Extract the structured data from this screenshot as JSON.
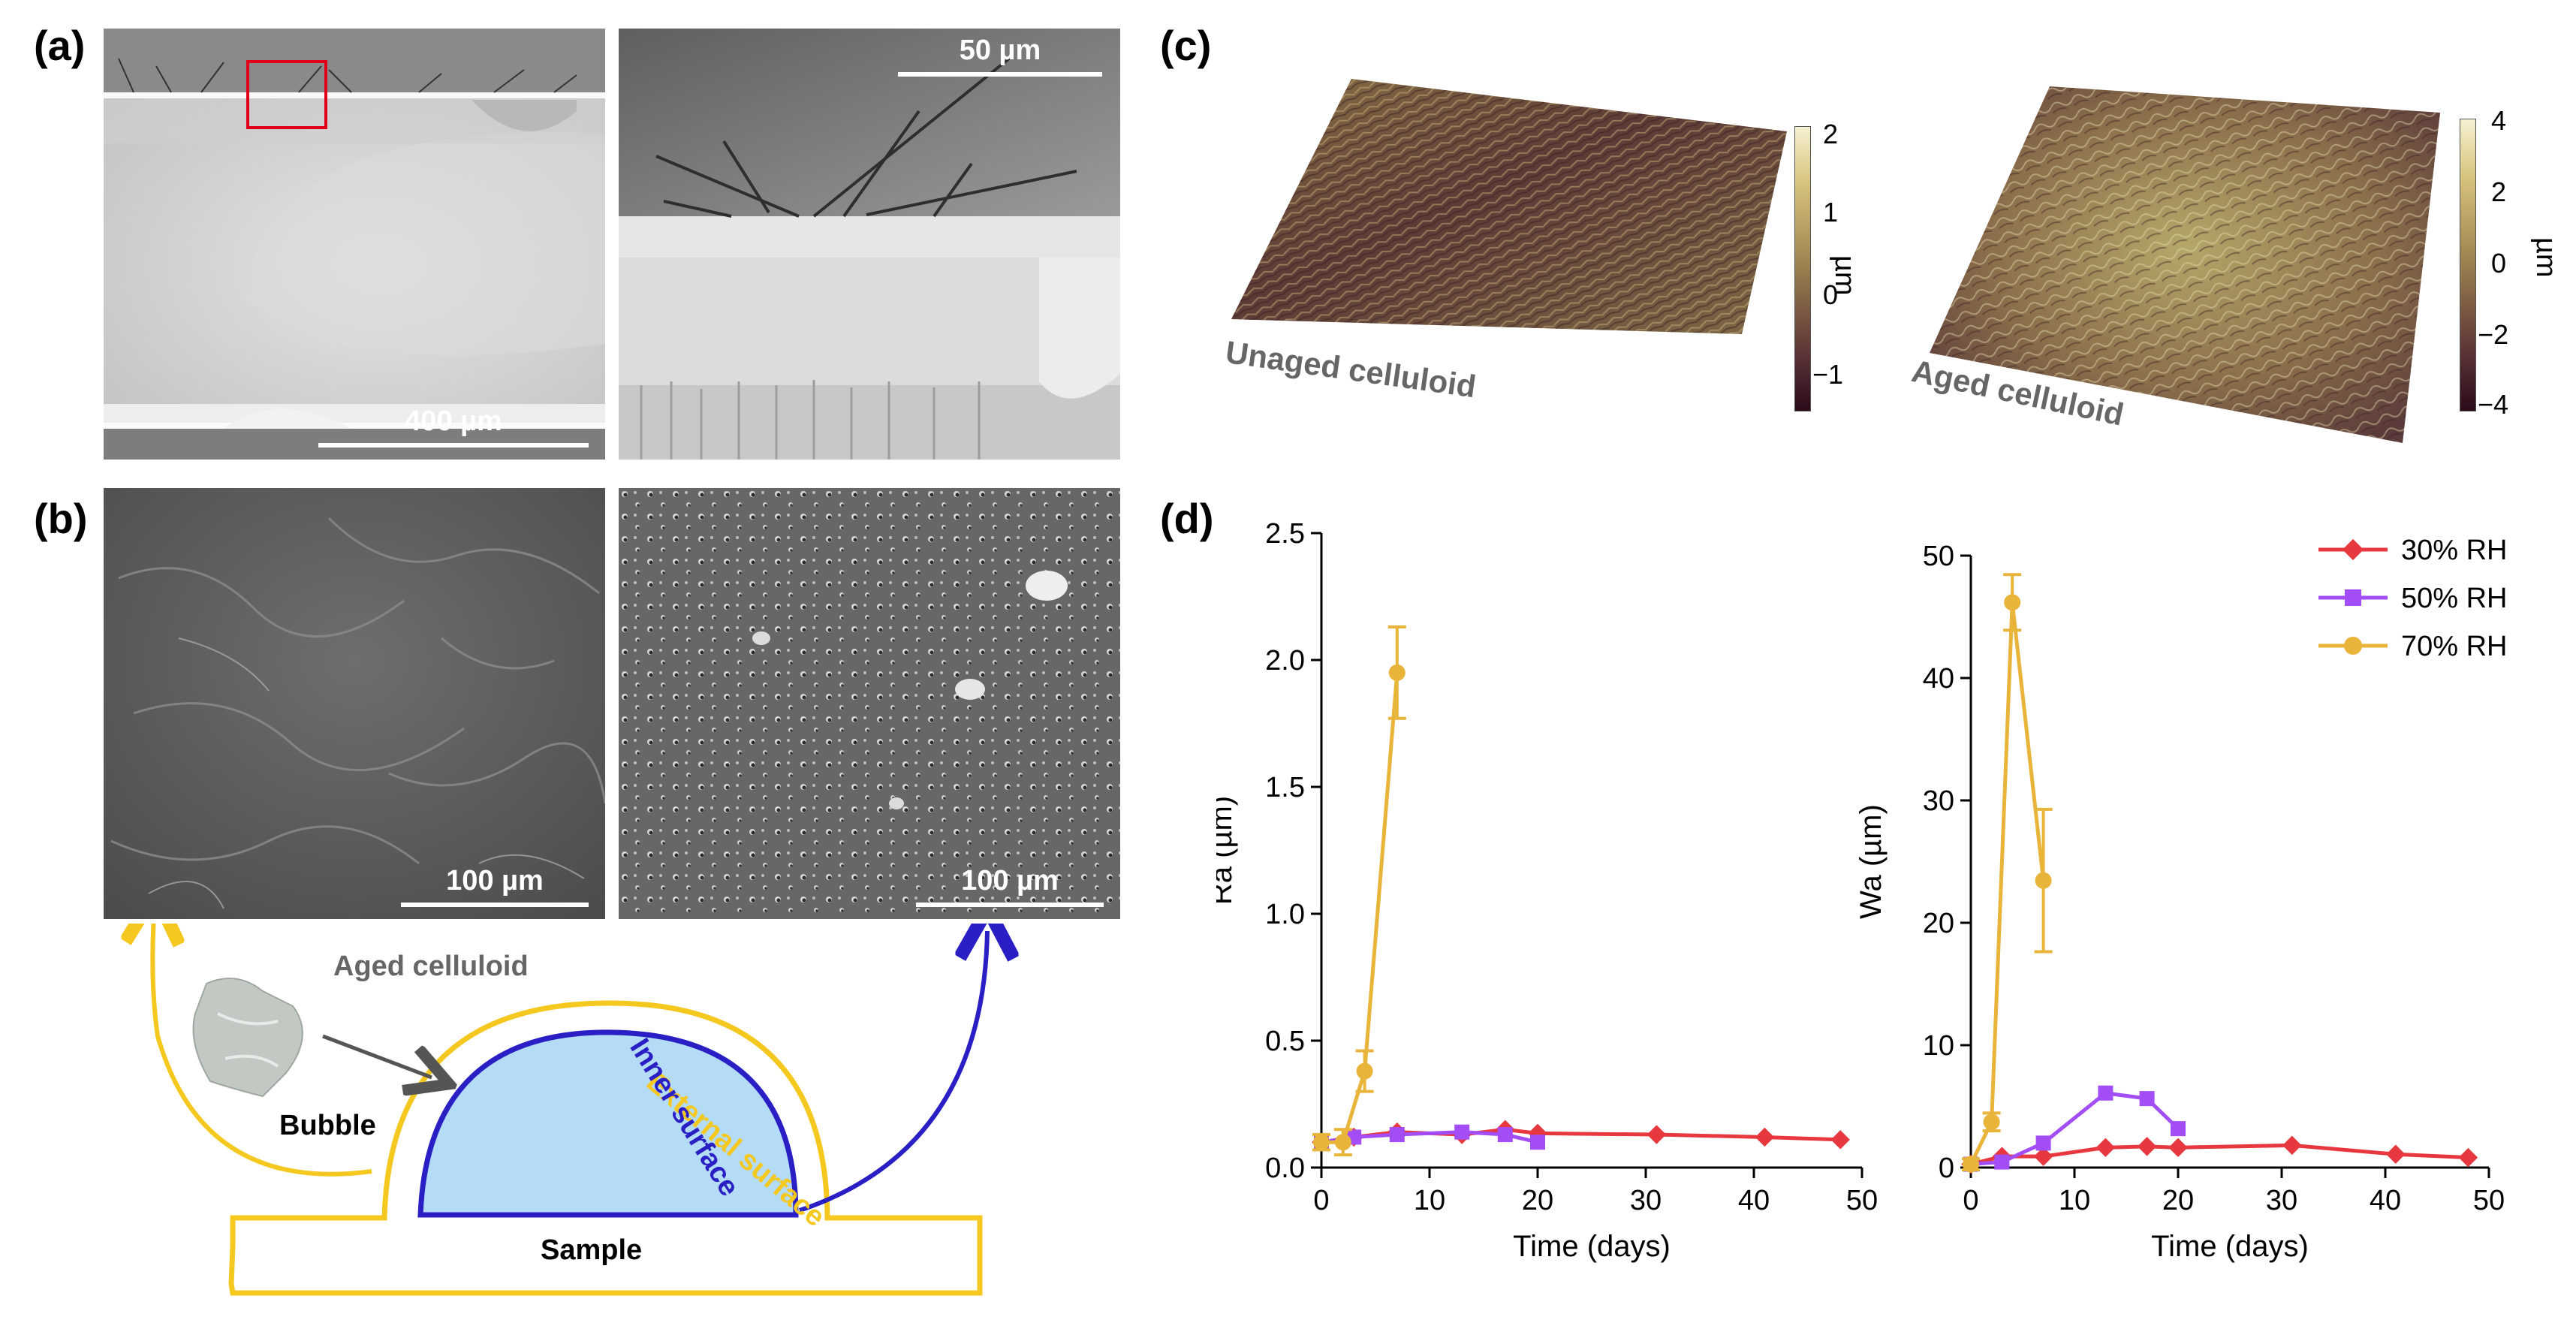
{
  "panels": {
    "a": {
      "letter": "(a)",
      "scale_left": "400 µm",
      "scale_right": "50 µm"
    },
    "b": {
      "letter": "(b)",
      "scale_left": "100 µm",
      "scale_right": "100 µm",
      "diagram": {
        "aged_celluloid": "Aged celluloid",
        "external_surface": "External surface",
        "inner_surface": "Inner surface",
        "bubble": "Bubble",
        "sample": "Sample"
      }
    },
    "c": {
      "letter": "(c)",
      "left_label": "Unaged celluloid",
      "right_label": "Aged celluloid",
      "unit": "µm",
      "left_colorbar_ticks": [
        "2",
        "1",
        "0",
        "−1"
      ],
      "right_colorbar_ticks": [
        "4",
        "2",
        "0",
        "−2",
        "−4"
      ]
    },
    "d": {
      "letter": "(d)"
    }
  },
  "colors": {
    "rh30": "#e8383f",
    "rh50": "#a24df5",
    "rh70": "#e8b43a",
    "yellow_outline": "#f4c81f",
    "blue_outline": "#2a1fc4",
    "bubble_fill": "#b5dcf7"
  },
  "chart_data": [
    {
      "type": "line",
      "xlabel": "Time (days)",
      "ylabel": "Ra (µm)",
      "xlim": [
        0,
        50
      ],
      "ylim": [
        0,
        2.5
      ],
      "xticks": [
        "0",
        "10",
        "20",
        "30",
        "40",
        "50"
      ],
      "yticks": [
        "0.0",
        "0.5",
        "1.0",
        "1.5",
        "2.0",
        "2.5"
      ],
      "series": [
        {
          "name": "30% RH",
          "color": "#e8383f",
          "marker": "diamond",
          "x": [
            0,
            3,
            7,
            13,
            17,
            20,
            31,
            41,
            48
          ],
          "y": [
            0.1,
            0.12,
            0.14,
            0.13,
            0.15,
            0.135,
            0.13,
            0.12,
            0.11
          ]
        },
        {
          "name": "50% RH",
          "color": "#a24df5",
          "marker": "square",
          "x": [
            0,
            3,
            7,
            13,
            17,
            20
          ],
          "y": [
            0.1,
            0.12,
            0.13,
            0.14,
            0.13,
            0.1
          ]
        },
        {
          "name": "70% RH",
          "color": "#e8b43a",
          "marker": "circle",
          "x": [
            0,
            2,
            4,
            7
          ],
          "y": [
            0.1,
            0.1,
            0.38,
            1.95
          ],
          "err": [
            0.03,
            0.05,
            0.08,
            0.18
          ]
        }
      ]
    },
    {
      "type": "line",
      "xlabel": "Time (days)",
      "ylabel": "Wa (µm)",
      "xlim": [
        0,
        50
      ],
      "ylim": [
        0,
        55
      ],
      "xticks": [
        "0",
        "10",
        "20",
        "30",
        "40",
        "50"
      ],
      "yticks": [
        "0",
        "10",
        "20",
        "30",
        "40",
        "50"
      ],
      "series": [
        {
          "name": "30% RH",
          "color": "#e8383f",
          "marker": "diamond",
          "x": [
            0,
            3,
            7,
            13,
            17,
            20,
            31,
            41,
            48
          ],
          "y": [
            0.3,
            1.0,
            1.0,
            1.8,
            1.9,
            1.8,
            2.0,
            1.2,
            0.9
          ]
        },
        {
          "name": "50% RH",
          "color": "#a24df5",
          "marker": "square",
          "x": [
            0,
            3,
            7,
            13,
            17,
            20
          ],
          "y": [
            0.3,
            0.5,
            2.2,
            6.7,
            6.2,
            3.5
          ]
        },
        {
          "name": "70% RH",
          "color": "#e8b43a",
          "marker": "circle",
          "x": [
            0,
            2,
            4,
            7
          ],
          "y": [
            0.3,
            4.1,
            50.8,
            25.8
          ],
          "err": [
            0.5,
            0.8,
            2.5,
            6.4
          ]
        }
      ]
    }
  ]
}
